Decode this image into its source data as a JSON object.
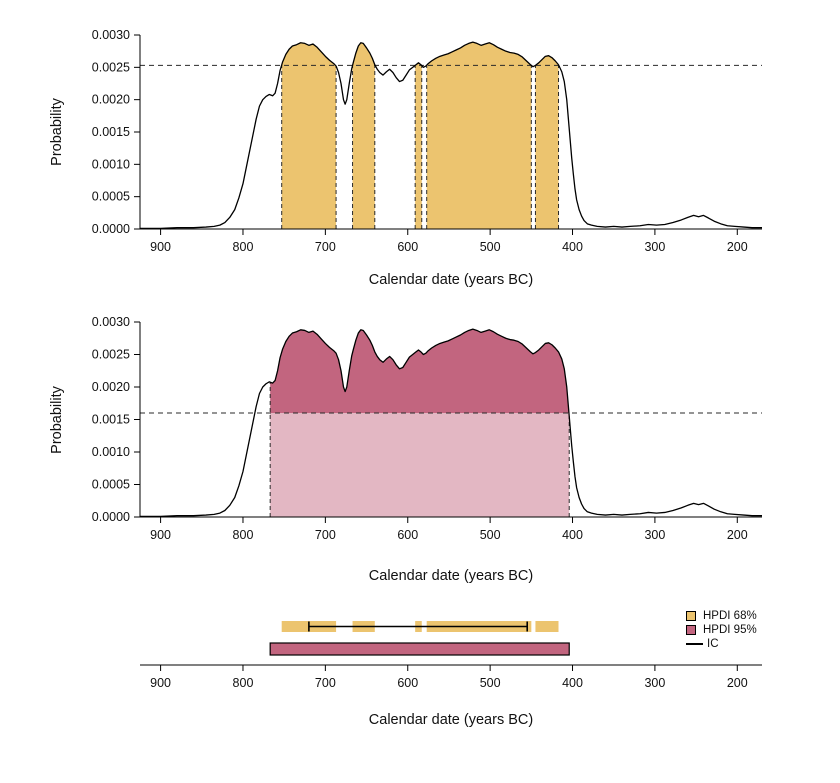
{
  "chart_data": {
    "type": "area",
    "title": "",
    "xlabel": "Calendar date (years BC)",
    "ylabel": "Probability",
    "x_ticks": [
      900,
      800,
      700,
      600,
      500,
      400,
      300,
      200
    ],
    "x_range": [
      925,
      170
    ],
    "y_ticks": [
      0,
      0.0005,
      0.001,
      0.0015,
      0.002,
      0.0025,
      0.003
    ],
    "y_max": 0.003,
    "grid": false,
    "curve": [
      [
        925,
        1e-05
      ],
      [
        900,
        1e-05
      ],
      [
        880,
        2e-05
      ],
      [
        860,
        2e-05
      ],
      [
        845,
        3e-05
      ],
      [
        835,
        4e-05
      ],
      [
        828,
        6e-05
      ],
      [
        822,
        0.0001
      ],
      [
        816,
        0.00018
      ],
      [
        810,
        0.0003
      ],
      [
        805,
        0.00048
      ],
      [
        800,
        0.0007
      ],
      [
        796,
        0.00095
      ],
      [
        792,
        0.0012
      ],
      [
        788,
        0.00145
      ],
      [
        784,
        0.0017
      ],
      [
        780,
        0.0019
      ],
      [
        776,
        0.002
      ],
      [
        772,
        0.00205
      ],
      [
        768,
        0.00208
      ],
      [
        764,
        0.00206
      ],
      [
        761,
        0.0021
      ],
      [
        758,
        0.00225
      ],
      [
        755,
        0.00245
      ],
      [
        752,
        0.00258
      ],
      [
        748,
        0.0027
      ],
      [
        744,
        0.00278
      ],
      [
        740,
        0.00283
      ],
      [
        735,
        0.00285
      ],
      [
        730,
        0.00288
      ],
      [
        725,
        0.00287
      ],
      [
        720,
        0.00284
      ],
      [
        715,
        0.00286
      ],
      [
        710,
        0.00281
      ],
      [
        705,
        0.00274
      ],
      [
        700,
        0.00267
      ],
      [
        695,
        0.00261
      ],
      [
        690,
        0.00256
      ],
      [
        687,
        0.00252
      ],
      [
        684,
        0.00242
      ],
      [
        681,
        0.00225
      ],
      [
        678,
        0.002
      ],
      [
        676,
        0.00193
      ],
      [
        674,
        0.002
      ],
      [
        671,
        0.00225
      ],
      [
        668,
        0.00248
      ],
      [
        666,
        0.00258
      ],
      [
        663,
        0.00272
      ],
      [
        660,
        0.00283
      ],
      [
        657,
        0.00288
      ],
      [
        654,
        0.00287
      ],
      [
        650,
        0.0028
      ],
      [
        646,
        0.00272
      ],
      [
        643,
        0.00264
      ],
      [
        640,
        0.00254
      ],
      [
        637,
        0.00247
      ],
      [
        634,
        0.00242
      ],
      [
        630,
        0.00238
      ],
      [
        626,
        0.00243
      ],
      [
        622,
        0.00247
      ],
      [
        618,
        0.00242
      ],
      [
        614,
        0.00234
      ],
      [
        610,
        0.00228
      ],
      [
        606,
        0.0023
      ],
      [
        602,
        0.00238
      ],
      [
        598,
        0.00246
      ],
      [
        594,
        0.0025
      ],
      [
        590,
        0.00254
      ],
      [
        587,
        0.00257
      ],
      [
        584,
        0.00254
      ],
      [
        581,
        0.0025
      ],
      [
        578,
        0.00252
      ],
      [
        575,
        0.00256
      ],
      [
        571,
        0.0026
      ],
      [
        566,
        0.00264
      ],
      [
        561,
        0.00267
      ],
      [
        556,
        0.00269
      ],
      [
        551,
        0.00271
      ],
      [
        546,
        0.00274
      ],
      [
        541,
        0.00277
      ],
      [
        536,
        0.0028
      ],
      [
        531,
        0.00284
      ],
      [
        526,
        0.00287
      ],
      [
        521,
        0.00289
      ],
      [
        516,
        0.00287
      ],
      [
        511,
        0.00284
      ],
      [
        506,
        0.00286
      ],
      [
        501,
        0.00288
      ],
      [
        496,
        0.00285
      ],
      [
        491,
        0.00281
      ],
      [
        486,
        0.00278
      ],
      [
        481,
        0.00275
      ],
      [
        476,
        0.00273
      ],
      [
        471,
        0.00272
      ],
      [
        466,
        0.0027
      ],
      [
        461,
        0.00266
      ],
      [
        456,
        0.0026
      ],
      [
        451,
        0.00254
      ],
      [
        448,
        0.00251
      ],
      [
        445,
        0.00253
      ],
      [
        441,
        0.00257
      ],
      [
        437,
        0.00262
      ],
      [
        433,
        0.00267
      ],
      [
        429,
        0.00268
      ],
      [
        425,
        0.00265
      ],
      [
        421,
        0.0026
      ],
      [
        417,
        0.00254
      ],
      [
        413,
        0.00243
      ],
      [
        410,
        0.00228
      ],
      [
        407,
        0.002
      ],
      [
        405,
        0.0017
      ],
      [
        403,
        0.0014
      ],
      [
        401,
        0.0011
      ],
      [
        399,
        0.00085
      ],
      [
        397,
        0.00062
      ],
      [
        395,
        0.00045
      ],
      [
        392,
        0.0003
      ],
      [
        389,
        0.0002
      ],
      [
        386,
        0.00013
      ],
      [
        382,
        8e-05
      ],
      [
        377,
        6e-05
      ],
      [
        370,
        4e-05
      ],
      [
        360,
        3e-05
      ],
      [
        350,
        4e-05
      ],
      [
        340,
        3e-05
      ],
      [
        330,
        4e-05
      ],
      [
        318,
        5e-05
      ],
      [
        308,
        7e-05
      ],
      [
        298,
        6e-05
      ],
      [
        288,
        7e-05
      ],
      [
        278,
        0.0001
      ],
      [
        268,
        0.00014
      ],
      [
        260,
        0.00018
      ],
      [
        253,
        0.00021
      ],
      [
        247,
        0.00019
      ],
      [
        241,
        0.00021
      ],
      [
        235,
        0.00017
      ],
      [
        228,
        0.00012
      ],
      [
        220,
        8e-05
      ],
      [
        212,
        5e-05
      ],
      [
        203,
        4e-05
      ],
      [
        192,
        3e-05
      ],
      [
        182,
        2e-05
      ],
      [
        170,
        2e-05
      ]
    ],
    "panels": [
      {
        "name": "HPDI 68%",
        "threshold": 0.00253,
        "intervals": [
          [
            753,
            687
          ],
          [
            667,
            640
          ],
          [
            591,
            583
          ],
          [
            577,
            450
          ],
          [
            445,
            417
          ]
        ],
        "fill": "#ecc46f"
      },
      {
        "name": "HPDI 95%",
        "threshold": 0.0016,
        "intervals": [
          [
            767,
            404
          ]
        ],
        "fill_above": "#c2657f",
        "fill_below": "#e3b7c3"
      }
    ],
    "interval_bars": {
      "hpdi68_intervals": [
        [
          753,
          687
        ],
        [
          667,
          640
        ],
        [
          591,
          583
        ],
        [
          577,
          450
        ],
        [
          445,
          417
        ]
      ],
      "hpdi95_range": [
        767,
        404
      ],
      "ic_range": [
        720,
        455
      ],
      "hpdi68_color": "#ecc46f",
      "hpdi95_color": "#c2657f",
      "hpdi95_outline": "#000000",
      "ic_color": "#000000"
    },
    "legend": {
      "position": "right",
      "items": [
        {
          "label": "HPDI 68%",
          "swatch": "square",
          "color": "#ecc46f"
        },
        {
          "label": "HPDI 95%",
          "swatch": "square",
          "color": "#c2657f"
        },
        {
          "label": "IC",
          "swatch": "line",
          "color": "#000000"
        }
      ]
    }
  }
}
